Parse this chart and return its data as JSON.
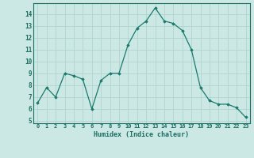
{
  "x": [
    0,
    1,
    2,
    3,
    4,
    5,
    6,
    7,
    8,
    9,
    10,
    11,
    12,
    13,
    14,
    15,
    16,
    17,
    18,
    19,
    20,
    21,
    22,
    23
  ],
  "y": [
    6.5,
    7.8,
    7.0,
    9.0,
    8.8,
    8.5,
    6.0,
    8.4,
    9.0,
    9.0,
    11.4,
    12.8,
    13.4,
    14.5,
    13.4,
    13.2,
    12.6,
    11.0,
    7.8,
    6.7,
    6.4,
    6.4,
    6.1,
    5.3
  ],
  "line_color": "#1a7a6e",
  "marker_color": "#1a7a6e",
  "bg_color": "#cce8e4",
  "grid_color": "#b0d4ce",
  "xlabel": "Humidex (Indice chaleur)",
  "ylabel_ticks": [
    5,
    6,
    7,
    8,
    9,
    10,
    11,
    12,
    13,
    14
  ],
  "ylim": [
    4.8,
    14.9
  ],
  "xlim": [
    -0.5,
    23.5
  ],
  "xticks": [
    0,
    1,
    2,
    3,
    4,
    5,
    6,
    7,
    8,
    9,
    10,
    11,
    12,
    13,
    14,
    15,
    16,
    17,
    18,
    19,
    20,
    21,
    22,
    23
  ],
  "xtick_labels": [
    "0",
    "1",
    "2",
    "3",
    "4",
    "5",
    "6",
    "7",
    "8",
    "9",
    "10",
    "11",
    "12",
    "13",
    "14",
    "15",
    "16",
    "17",
    "18",
    "19",
    "20",
    "21",
    "22",
    "23"
  ],
  "font_color": "#1a6e63"
}
